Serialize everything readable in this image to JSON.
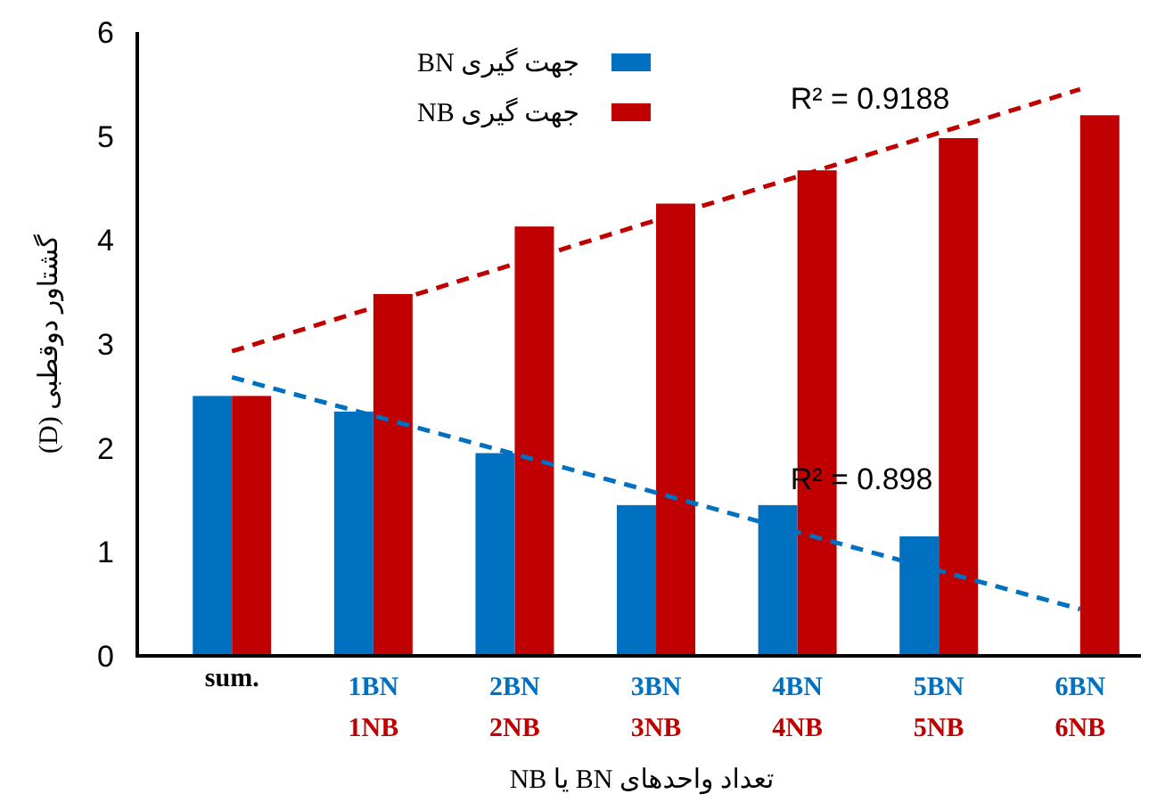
{
  "chart_data": {
    "type": "bar",
    "xlabel": "تعداد واحدهای BN یا NB",
    "ylabel": "گشتاور دوقطبی (D)",
    "categories": [
      "sum.",
      "1BN",
      "2BN",
      "3BN",
      "4BN",
      "5BN",
      "6BN"
    ],
    "series": [
      {
        "name": "جهت گیری BN",
        "color": "#0070c0",
        "values": [
          2.5,
          2.35,
          1.95,
          1.45,
          1.45,
          1.15,
          0
        ]
      },
      {
        "name": "جهت گیری NB",
        "color": "#c00000",
        "values": [
          2.5,
          3.48,
          4.13,
          4.35,
          4.67,
          4.98,
          5.2
        ]
      },
      {
        "type": "line",
        "color": "#0070c0",
        "line_style": "dashed",
        "values": [
          2.68,
          2.31,
          1.94,
          1.57,
          1.19,
          0.82,
          0.45
        ]
      },
      {
        "type": "line",
        "color": "#c00000",
        "line_style": "dashed",
        "values": [
          2.93,
          3.35,
          3.77,
          4.19,
          4.61,
          5.03,
          5.45
        ]
      }
    ],
    "annotations": [
      "R² = 0.9188",
      "R² = 0.898",
      "1NB",
      "2NB",
      "3NB",
      "4NB",
      "5NB",
      "6NB"
    ],
    "ylim": [
      0,
      6
    ],
    "yticks": [
      0,
      1,
      2,
      3,
      4,
      5,
      6
    ],
    "legend": "top left"
  }
}
